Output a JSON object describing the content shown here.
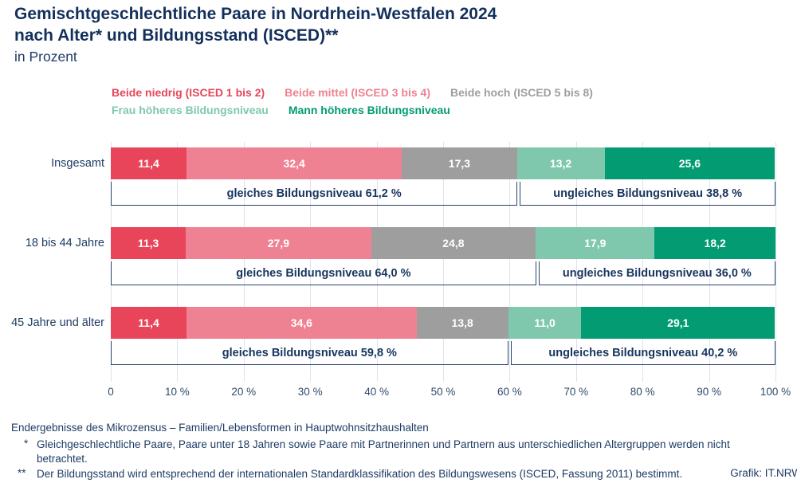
{
  "title": {
    "line1": "Gemischtgeschlechtliche Paare in Nordrhein-Westfalen 2024",
    "line2": "nach Alter* und Bildungsstand (ISCED)**",
    "subtitle": "in Prozent"
  },
  "colors": {
    "navy_text": "#13305c",
    "bracket_border": "#27436e",
    "gridline": "#dce4ee",
    "red": "#e8455b",
    "pink": "#ef8292",
    "gray": "#9e9e9e",
    "mint": "#7fc8ad",
    "green": "#029b72"
  },
  "legend": {
    "rows": [
      [
        {
          "label": "Beide niedrig (ISCED 1 bis 2)",
          "color": "#e8455b"
        },
        {
          "label": "Beide mittel (ISCED 3 bis 4)",
          "color": "#ef8292"
        },
        {
          "label": "Beide hoch (ISCED 5 bis 8)",
          "color": "#9e9e9e"
        }
      ],
      [
        {
          "label": "Frau höheres Bildungsniveau",
          "color": "#7fc8ad"
        },
        {
          "label": "Mann höheres Bildungsniveau",
          "color": "#029b72"
        }
      ]
    ]
  },
  "chart_data": {
    "type": "bar",
    "orientation": "horizontal",
    "stacked": true,
    "unit": "%",
    "title": "Gemischtgeschlechtliche Paare in Nordrhein-Westfalen 2024 nach Alter* und Bildungsstand (ISCED)**",
    "subtitle": "in Prozent",
    "categories": [
      "Insgesamt",
      "18 bis 44 Jahre",
      "45 Jahre und älter"
    ],
    "series": [
      {
        "name": "Beide niedrig (ISCED 1 bis 2)",
        "color": "#e8455b",
        "values": [
          11.4,
          11.3,
          11.4
        ],
        "labels": [
          "11,4",
          "11,3",
          "11,4"
        ]
      },
      {
        "name": "Beide mittel (ISCED 3 bis 4)",
        "color": "#ef8292",
        "values": [
          32.4,
          27.9,
          34.6
        ],
        "labels": [
          "32,4",
          "27,9",
          "34,6"
        ]
      },
      {
        "name": "Beide hoch (ISCED 5 bis 8)",
        "color": "#9e9e9e",
        "values": [
          17.3,
          24.8,
          13.8
        ],
        "labels": [
          "17,3",
          "24,8",
          "13,8"
        ]
      },
      {
        "name": "Frau höheres Bildungsniveau",
        "color": "#7fc8ad",
        "values": [
          13.2,
          17.9,
          11.0
        ],
        "labels": [
          "13,2",
          "17,9",
          "11,0"
        ]
      },
      {
        "name": "Mann höheres Bildungsniveau",
        "color": "#029b72",
        "values": [
          25.6,
          18.2,
          29.1
        ],
        "labels": [
          "25,6",
          "18,2",
          "29,1"
        ]
      }
    ],
    "group_annotations": [
      {
        "left_label": "gleiches Bildungsniveau 61,2 %",
        "right_label": "ungleiches Bildungsniveau 38,8 %",
        "split_pct": 61.2
      },
      {
        "left_label": "gleiches Bildungsniveau 64,0 %",
        "right_label": "ungleiches Bildungsniveau 36,0 %",
        "split_pct": 64.0
      },
      {
        "left_label": "gleiches Bildungsniveau 59,8 %",
        "right_label": "ungleiches Bildungsniveau 40,2 %",
        "split_pct": 59.8
      }
    ],
    "x_ticks": [
      "0",
      "10 %",
      "20 %",
      "30 %",
      "40 %",
      "50 %",
      "60 %",
      "70 %",
      "80 %",
      "90 %",
      "100 %"
    ],
    "xlim": [
      0,
      100
    ],
    "grid": true,
    "legend_position": "top"
  },
  "footnotes": {
    "source": "Endergebnisse des Mikrozensus – Familien/Lebensformen in Hauptwohnsitzhaushalten",
    "fn1_marker": "*",
    "fn1": "Gleichgeschlechtliche Paare, Paare unter 18 Jahren sowie Paare mit Partnerinnen und Partnern aus unterschiedlichen Altergruppen werden nicht betrachtet.",
    "fn2_marker": "**",
    "fn2": "Der Bildungsstand wird entsprechend der internationalen Standardklassifikation des Bildungswesens (ISCED, Fassung 2011) bestimmt."
  },
  "credit": "Grafik: IT.NRW"
}
